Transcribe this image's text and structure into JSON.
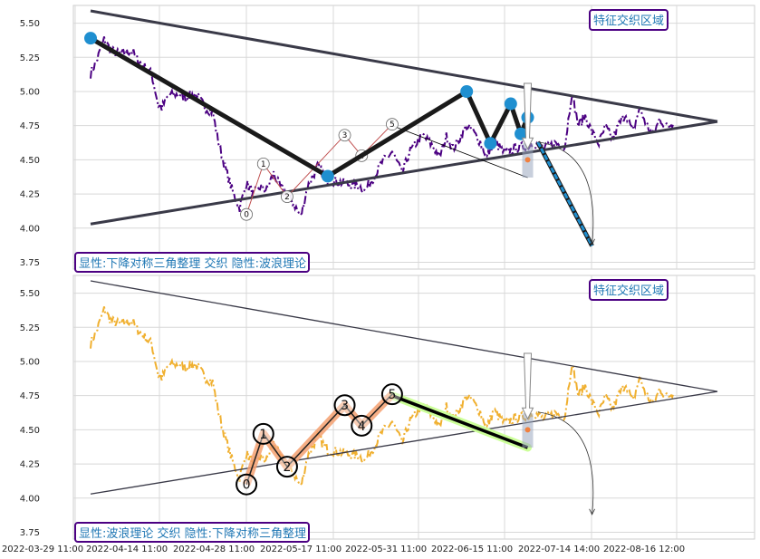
{
  "chart_data": {
    "type": "line",
    "x_tick_labels": [
      "2022-03-29 11:00",
      "2022-04-14 11:00",
      "2022-04-28 11:00",
      "2022-05-17 11:00",
      "2022-05-31 11:00",
      "2022-06-15 11:00",
      "2022-07-14 14:00",
      "2022-08-16 12:00"
    ],
    "y_tick_labels": [
      "3.75",
      "4.00",
      "4.25",
      "4.50",
      "4.75",
      "5.00",
      "5.25",
      "5.50"
    ],
    "ylim": [
      3.7,
      5.63
    ],
    "grid": true,
    "colors": {
      "top_series": "#4b0082",
      "bottom_series": "#f0b030",
      "lines": "#3a3a48",
      "pivot": "#1f8fd0",
      "badge_border": "#4b0082",
      "badge_text": "#1f77b4",
      "channel": "#ccff99",
      "highlight": "#f4a070"
    },
    "price_keypoints": [
      [
        0,
        5.13
      ],
      [
        2,
        5.24
      ],
      [
        4,
        5.38
      ],
      [
        6,
        5.3
      ],
      [
        9,
        5.27
      ],
      [
        12,
        5.3
      ],
      [
        15,
        5.2
      ],
      [
        18,
        5.13
      ],
      [
        20,
        4.9
      ],
      [
        21,
        4.88
      ],
      [
        23,
        4.97
      ],
      [
        25,
        4.98
      ],
      [
        28,
        4.96
      ],
      [
        31,
        4.98
      ],
      [
        34,
        4.88
      ],
      [
        36,
        4.85
      ],
      [
        38,
        4.6
      ],
      [
        40,
        4.42
      ],
      [
        42,
        4.26
      ],
      [
        44,
        4.15
      ],
      [
        46,
        4.33
      ],
      [
        48,
        4.25
      ],
      [
        50,
        4.3
      ],
      [
        52,
        4.28
      ],
      [
        54,
        4.4
      ],
      [
        56,
        4.3
      ],
      [
        58,
        4.24
      ],
      [
        60,
        4.18
      ],
      [
        62,
        4.08
      ],
      [
        64,
        4.3
      ],
      [
        67,
        4.45
      ],
      [
        70,
        4.35
      ],
      [
        73,
        4.34
      ],
      [
        76,
        4.32
      ],
      [
        79,
        4.31
      ],
      [
        81,
        4.28
      ],
      [
        83,
        4.35
      ],
      [
        86,
        4.48
      ],
      [
        89,
        4.56
      ],
      [
        92,
        4.4
      ],
      [
        94,
        4.55
      ],
      [
        96,
        4.62
      ],
      [
        98,
        4.68
      ],
      [
        101,
        4.6
      ],
      [
        103,
        4.52
      ],
      [
        105,
        4.67
      ],
      [
        107,
        4.58
      ],
      [
        109,
        4.66
      ],
      [
        111,
        4.75
      ],
      [
        113,
        4.7
      ],
      [
        115,
        4.63
      ],
      [
        117,
        4.52
      ],
      [
        119,
        4.64
      ],
      [
        122,
        4.55
      ],
      [
        125,
        4.58
      ],
      [
        128,
        4.6
      ],
      [
        131,
        4.62
      ],
      [
        134,
        4.58
      ],
      [
        137,
        4.62
      ],
      [
        140,
        4.6
      ],
      [
        142,
        4.99
      ],
      [
        144,
        4.75
      ],
      [
        146,
        4.82
      ],
      [
        148,
        4.7
      ],
      [
        150,
        4.62
      ],
      [
        152,
        4.74
      ],
      [
        154,
        4.65
      ],
      [
        156,
        4.76
      ],
      [
        158,
        4.84
      ],
      [
        160,
        4.7
      ],
      [
        162,
        4.88
      ],
      [
        164,
        4.76
      ],
      [
        166,
        4.68
      ],
      [
        168,
        4.8
      ],
      [
        170,
        4.74
      ],
      [
        172,
        4.77
      ]
    ],
    "x_count": 185,
    "channel_upper": [
      [
        0,
        5.59
      ],
      [
        185,
        4.78
      ]
    ],
    "channel_lower": [
      [
        0,
        4.03
      ],
      [
        185,
        4.78
      ]
    ],
    "triangle_zigzag": [
      [
        0,
        5.39
      ],
      [
        70,
        4.38
      ],
      [
        111,
        5.0
      ],
      [
        118,
        4.62
      ],
      [
        124,
        4.91
      ],
      [
        127,
        4.69
      ],
      [
        129,
        4.81
      ]
    ],
    "triangle_pivots": [
      [
        0,
        5.39
      ],
      [
        70,
        4.38
      ],
      [
        111,
        5.0
      ],
      [
        118,
        4.62
      ],
      [
        124,
        4.91
      ],
      [
        127,
        4.69
      ],
      [
        129,
        4.81
      ]
    ],
    "wave_points": [
      {
        "label": "0",
        "x": 46,
        "y": 4.1
      },
      {
        "label": "1",
        "x": 51,
        "y": 4.47
      },
      {
        "label": "2",
        "x": 58,
        "y": 4.23
      },
      {
        "label": "3",
        "x": 75,
        "y": 4.68
      },
      {
        "label": "4",
        "x": 80,
        "y": 4.53
      },
      {
        "label": "5",
        "x": 89,
        "y": 4.76
      }
    ],
    "wave_channel": {
      "start": [
        89,
        4.75
      ],
      "end": [
        129,
        4.37
      ]
    },
    "projection_top": {
      "start": [
        132,
        4.63
      ],
      "end": [
        148,
        3.87
      ]
    },
    "projection_bottom_arc": {
      "start": [
        132,
        4.63
      ],
      "end": [
        148,
        3.88
      ]
    },
    "feature_marker": {
      "x": 129,
      "y": 4.5,
      "y_low": 4.37,
      "y_high": 4.62
    },
    "arrow_from_y": 5.06,
    "annotation_top": "特征交织区域",
    "annotation_bottom": "特征交织区域",
    "legend_top": "显性:下降对称三角整理 交织 隐性:波浪理论",
    "legend_bottom": "显性:波浪理论 交织 隐性:下降对称三角整理"
  }
}
